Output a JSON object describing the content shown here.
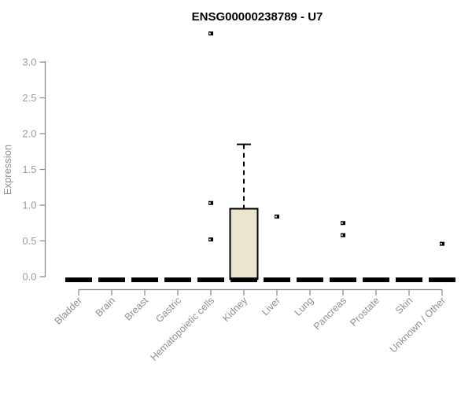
{
  "chart_data": {
    "type": "boxplot",
    "title": "ENSG00000238789 - U7",
    "xlabel": "",
    "ylabel": "Expression",
    "ylim": [
      0,
      3.0
    ],
    "yticks": [
      "0.0",
      "0.5",
      "1.0",
      "1.5",
      "2.0",
      "2.5",
      "3.0"
    ],
    "ytick_values": [
      0,
      0.5,
      1.0,
      1.5,
      2.0,
      2.5,
      3.0
    ],
    "grid": "off",
    "legend": "none",
    "categories": [
      "Bladder",
      "Brain",
      "Breast",
      "Gastric",
      "Hematopoietic cells",
      "Kidney",
      "Liver",
      "Lung",
      "Pancreas",
      "Prostate",
      "Skin",
      "Unknown / Other"
    ],
    "boxes": [
      {
        "label": "Bladder",
        "whisker_low": 0,
        "q1": 0,
        "median": 0,
        "q3": 0,
        "whisker_high": 0,
        "outliers": []
      },
      {
        "label": "Brain",
        "whisker_low": 0,
        "q1": 0,
        "median": 0,
        "q3": 0,
        "whisker_high": 0,
        "outliers": []
      },
      {
        "label": "Breast",
        "whisker_low": 0,
        "q1": 0,
        "median": 0,
        "q3": 0,
        "whisker_high": 0,
        "outliers": []
      },
      {
        "label": "Gastric",
        "whisker_low": 0,
        "q1": 0,
        "median": 0,
        "q3": 0,
        "whisker_high": 0,
        "outliers": []
      },
      {
        "label": "Hematopoietic cells",
        "whisker_low": 0,
        "q1": 0,
        "median": 0,
        "q3": 0,
        "whisker_high": 0,
        "outliers": [
          3.4,
          1.03,
          0.52
        ]
      },
      {
        "label": "Kidney",
        "whisker_low": 0,
        "q1": 0,
        "median": 0,
        "q3": 0.95,
        "whisker_high": 1.85,
        "outliers": []
      },
      {
        "label": "Liver",
        "whisker_low": 0,
        "q1": 0,
        "median": 0,
        "q3": 0,
        "whisker_high": 0,
        "outliers": [
          0.84
        ]
      },
      {
        "label": "Lung",
        "whisker_low": 0,
        "q1": 0,
        "median": 0,
        "q3": 0,
        "whisker_high": 0,
        "outliers": []
      },
      {
        "label": "Pancreas",
        "whisker_low": 0,
        "q1": 0,
        "median": 0,
        "q3": 0,
        "whisker_high": 0,
        "outliers": [
          0.75,
          0.58
        ]
      },
      {
        "label": "Prostate",
        "whisker_low": 0,
        "q1": 0,
        "median": 0,
        "q3": 0,
        "whisker_high": 0,
        "outliers": []
      },
      {
        "label": "Skin",
        "whisker_low": 0,
        "q1": 0,
        "median": 0,
        "q3": 0,
        "whisker_high": 0,
        "outliers": []
      },
      {
        "label": "Unknown / Other",
        "whisker_low": 0,
        "q1": 0,
        "median": 0,
        "q3": 0,
        "whisker_high": 0,
        "outliers": [
          0.46
        ]
      }
    ],
    "colors": {
      "box_fill": "#EAE5CC",
      "box_border": "#000000",
      "zero_bar": "#000000",
      "whisker": "#000000",
      "outlier": "#000000",
      "axis_line": "#858585",
      "tick_label": "#9B9B9B",
      "x_label": "#8F8F8F",
      "y_axis_title": "#8F8F8F",
      "title": "#000000",
      "background": "#FFFFFF"
    }
  }
}
